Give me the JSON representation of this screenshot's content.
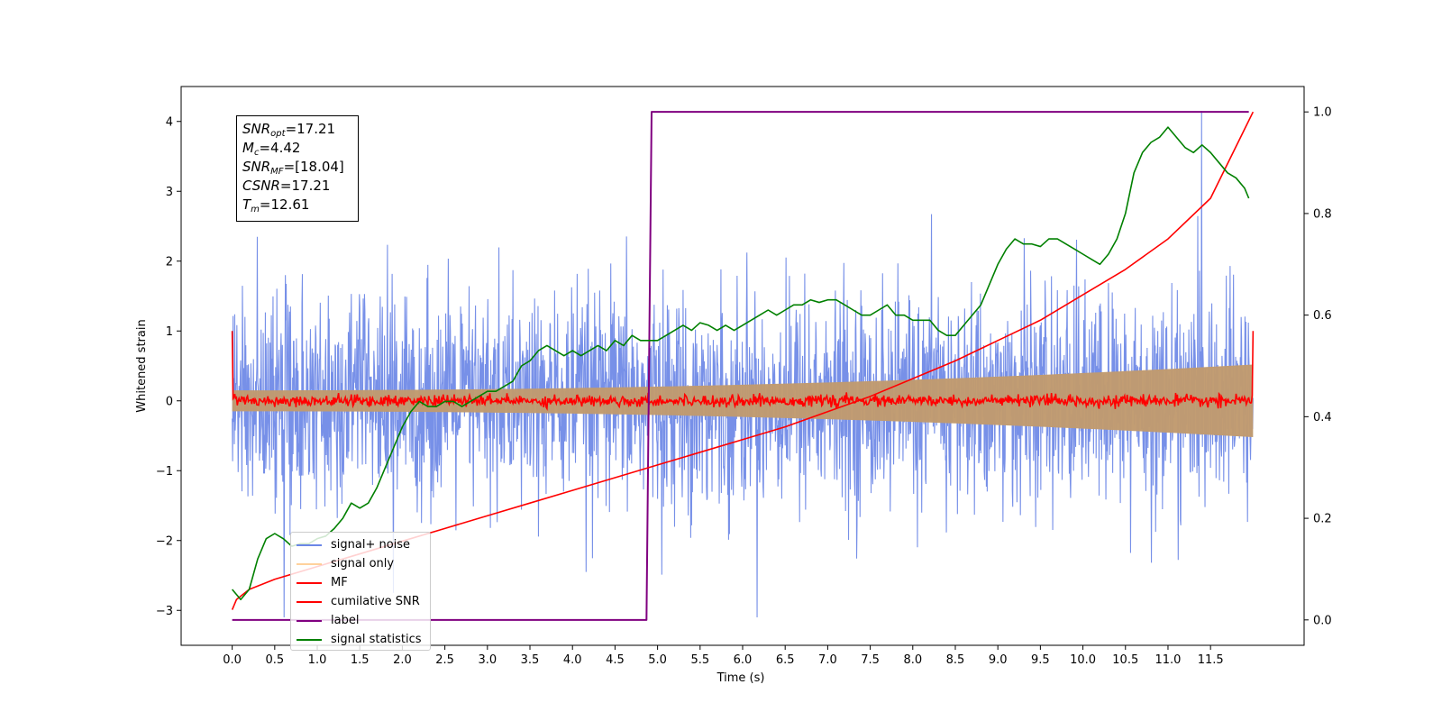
{
  "chart_data": {
    "type": "line",
    "xlabel": "Time (s)",
    "ylabel": "Whitened strain",
    "xlim": [
      -0.6,
      12.6
    ],
    "ylim": [
      -3.5,
      4.5
    ],
    "ylim_right": [
      -0.05,
      1.05
    ],
    "x_ticks": [
      "0.0",
      "0.5",
      "1.0",
      "1.5",
      "2.0",
      "2.5",
      "3.0",
      "3.5",
      "4.0",
      "4.5",
      "5.0",
      "5.5",
      "6.0",
      "6.5",
      "7.0",
      "7.5",
      "8.0",
      "8.5",
      "9.0",
      "9.5",
      "10.0",
      "10.5",
      "11.0",
      "11.5"
    ],
    "y_ticks_left": [
      "4",
      "3",
      "2",
      "1",
      "0",
      "−1",
      "−2",
      "−3"
    ],
    "y_ticks_right": [
      "1.0",
      "0.8",
      "0.6",
      "0.4",
      "0.2",
      "0.0"
    ],
    "legend_position": "lower-left",
    "series": [
      {
        "name": "signal+ noise",
        "color": "#6b87e6",
        "axis": "left",
        "kind": "noise",
        "std": 1.0,
        "duration": 12.0
      },
      {
        "name": "signal only",
        "color": "#ffb45a",
        "axis": "left",
        "kind": "envelope",
        "amp_start": 0.15,
        "amp_end": 0.52
      },
      {
        "name": "MF",
        "color": "#ff0000",
        "axis": "left",
        "kind": "matched-filter",
        "start_value": 1.0,
        "end_value": 1.0,
        "baseline": 0.0
      },
      {
        "name": "cumilative SNR",
        "color": "#ff0000",
        "axis": "right",
        "x": [
          0.0,
          0.05,
          0.2,
          0.5,
          1.0,
          1.5,
          2.0,
          2.5,
          3.0,
          3.5,
          4.0,
          4.5,
          5.0,
          5.5,
          6.0,
          6.5,
          7.0,
          7.5,
          8.0,
          8.5,
          9.0,
          9.5,
          10.0,
          10.5,
          11.0,
          11.5,
          12.0
        ],
        "y": [
          0.02,
          0.04,
          0.06,
          0.08,
          0.105,
          0.13,
          0.155,
          0.18,
          0.205,
          0.23,
          0.255,
          0.28,
          0.305,
          0.33,
          0.355,
          0.38,
          0.41,
          0.44,
          0.475,
          0.51,
          0.55,
          0.59,
          0.64,
          0.69,
          0.75,
          0.83,
          1.0
        ]
      },
      {
        "name": "label",
        "color": "#800080",
        "axis": "right",
        "x": [
          0.0,
          4.87,
          4.93,
          11.95
        ],
        "y": [
          0.0,
          0.0,
          1.0,
          1.0
        ]
      },
      {
        "name": "signal statistics",
        "color": "#008000",
        "axis": "right",
        "x": [
          0.0,
          0.1,
          0.2,
          0.3,
          0.4,
          0.5,
          0.6,
          0.7,
          0.8,
          0.9,
          1.0,
          1.1,
          1.2,
          1.3,
          1.4,
          1.5,
          1.6,
          1.7,
          1.8,
          1.9,
          2.0,
          2.1,
          2.2,
          2.3,
          2.4,
          2.5,
          2.6,
          2.7,
          2.8,
          2.9,
          3.0,
          3.1,
          3.2,
          3.3,
          3.4,
          3.5,
          3.6,
          3.7,
          3.8,
          3.9,
          4.0,
          4.1,
          4.2,
          4.3,
          4.4,
          4.5,
          4.6,
          4.7,
          4.8,
          4.9,
          5.0,
          5.1,
          5.2,
          5.3,
          5.4,
          5.5,
          5.6,
          5.7,
          5.8,
          5.9,
          6.0,
          6.1,
          6.2,
          6.3,
          6.4,
          6.5,
          6.6,
          6.7,
          6.8,
          6.9,
          7.0,
          7.1,
          7.2,
          7.3,
          7.4,
          7.5,
          7.6,
          7.7,
          7.8,
          7.9,
          8.0,
          8.1,
          8.2,
          8.3,
          8.4,
          8.5,
          8.6,
          8.7,
          8.8,
          8.9,
          9.0,
          9.1,
          9.2,
          9.3,
          9.4,
          9.5,
          9.6,
          9.7,
          9.8,
          9.9,
          10.0,
          10.1,
          10.2,
          10.3,
          10.4,
          10.5,
          10.6,
          10.7,
          10.8,
          10.9,
          11.0,
          11.1,
          11.2,
          11.3,
          11.4,
          11.5,
          11.6,
          11.7,
          11.8,
          11.9,
          11.95
        ],
        "y": [
          0.06,
          0.04,
          0.06,
          0.12,
          0.16,
          0.17,
          0.16,
          0.145,
          0.15,
          0.15,
          0.16,
          0.165,
          0.18,
          0.2,
          0.23,
          0.22,
          0.23,
          0.26,
          0.3,
          0.34,
          0.38,
          0.41,
          0.43,
          0.42,
          0.42,
          0.43,
          0.43,
          0.42,
          0.43,
          0.44,
          0.45,
          0.45,
          0.46,
          0.47,
          0.5,
          0.51,
          0.53,
          0.54,
          0.53,
          0.52,
          0.53,
          0.52,
          0.53,
          0.54,
          0.53,
          0.55,
          0.54,
          0.56,
          0.55,
          0.55,
          0.55,
          0.56,
          0.57,
          0.58,
          0.57,
          0.585,
          0.58,
          0.57,
          0.58,
          0.57,
          0.58,
          0.59,
          0.6,
          0.61,
          0.6,
          0.61,
          0.62,
          0.62,
          0.63,
          0.625,
          0.63,
          0.63,
          0.62,
          0.61,
          0.6,
          0.6,
          0.61,
          0.62,
          0.6,
          0.6,
          0.59,
          0.59,
          0.59,
          0.57,
          0.56,
          0.56,
          0.58,
          0.6,
          0.62,
          0.66,
          0.7,
          0.73,
          0.75,
          0.74,
          0.74,
          0.735,
          0.75,
          0.75,
          0.74,
          0.73,
          0.72,
          0.71,
          0.7,
          0.72,
          0.75,
          0.8,
          0.88,
          0.92,
          0.94,
          0.95,
          0.97,
          0.95,
          0.93,
          0.92,
          0.935,
          0.92,
          0.9,
          0.88,
          0.87,
          0.85,
          0.83
        ]
      }
    ],
    "annotations": [
      {
        "label": "SNR",
        "sub": "opt",
        "value": "=17.21"
      },
      {
        "label": "M",
        "sub": "c",
        "value": "=4.42"
      },
      {
        "label": "SNR",
        "sub": "MF",
        "value": "=[18.04]"
      },
      {
        "label": "CSNR",
        "sub": "",
        "value": "=17.21"
      },
      {
        "label": "T",
        "sub": "m",
        "value": "=12.61"
      }
    ]
  }
}
